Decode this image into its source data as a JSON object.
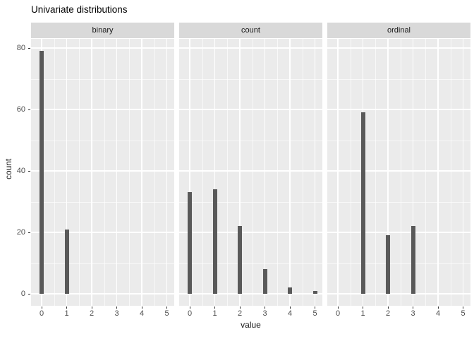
{
  "chart_data": {
    "type": "bar",
    "title": "Univariate distributions",
    "xlabel": "value",
    "ylabel": "count",
    "x_ticks": [
      "0",
      "1",
      "2",
      "3",
      "4",
      "5"
    ],
    "y_ticks": [
      0,
      20,
      40,
      60,
      80
    ],
    "y_minor_ticks": [
      10,
      30,
      50,
      70
    ],
    "ylim": [
      -4,
      83
    ],
    "grid": "major and minor white gridlines on gray panel",
    "legend_position": "none",
    "facets": [
      {
        "label": "binary",
        "bars": [
          {
            "x": 0,
            "count": 79
          },
          {
            "x": 1,
            "count": 21
          }
        ]
      },
      {
        "label": "count",
        "bars": [
          {
            "x": 0,
            "count": 33
          },
          {
            "x": 1,
            "count": 34
          },
          {
            "x": 2,
            "count": 22
          },
          {
            "x": 3,
            "count": 8
          },
          {
            "x": 4,
            "count": 2
          },
          {
            "x": 5,
            "count": 1
          }
        ]
      },
      {
        "label": "ordinal",
        "bars": [
          {
            "x": 1,
            "count": 59
          },
          {
            "x": 2,
            "count": 19
          },
          {
            "x": 3,
            "count": 22
          }
        ]
      }
    ],
    "colors": {
      "bar": "#595959",
      "panel_background": "#ebebeb",
      "strip_background": "#d9d9d9",
      "gridline": "#ffffff",
      "tick_label": "#4d4d4d",
      "strip_text": "#1a1a1a",
      "title_text": "#000000",
      "figure_background": "#ffffff"
    }
  }
}
